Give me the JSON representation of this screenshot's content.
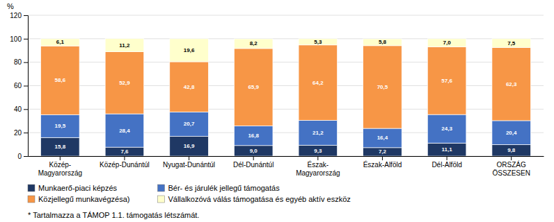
{
  "chart_data": {
    "type": "bar",
    "stacked": true,
    "data_labels": true,
    "grid": true,
    "y_label": "%",
    "categories": [
      "Közép-\nMagyarország",
      "Közép-Dunántúl",
      "Nyugat-Dunántúl",
      "Dél-Dunántúl",
      "Észak-\nMagyarország",
      "Észak-Alföld",
      "Dél-Alföld",
      "ORSZÁG\nÖSSZESEN"
    ],
    "series": [
      {
        "name": "Munkaerő-piaci képzés",
        "color": "#1F3864",
        "values": [
          15.8,
          7.6,
          16.9,
          9.0,
          9.3,
          7.2,
          11.1,
          9.8
        ],
        "value_labels": [
          "15,8",
          "7,6",
          "16,9",
          "9,0",
          "9,3",
          "7,2",
          "11,1",
          "9,8"
        ]
      },
      {
        "name": "Bér- és járulék jellegű támogatás",
        "color": "#4472C4",
        "values": [
          19.5,
          28.4,
          20.7,
          16.8,
          21.2,
          16.4,
          24.3,
          20.4
        ],
        "value_labels": [
          "19,5",
          "28,4",
          "20,7",
          "16,8",
          "21,2",
          "16,4",
          "24,3",
          "20,4"
        ]
      },
      {
        "name": "Közjellegű munkavégzésa)",
        "color": "#F79646",
        "values": [
          58.6,
          52.9,
          42.8,
          65.9,
          64.2,
          70.5,
          57.6,
          62.3
        ],
        "value_labels": [
          "58,6",
          "52,9",
          "42,8",
          "65,9",
          "64,2",
          "70,5",
          "57,6",
          "62,3"
        ]
      },
      {
        "name": "Vállalkozóvá válás támogatása és egyéb aktív eszköz",
        "color": "#FFFFCC",
        "values": [
          6.1,
          11.2,
          19.6,
          8.2,
          5.3,
          5.8,
          7.0,
          7.5
        ],
        "value_labels": [
          "6,1",
          "11,2",
          "19,6",
          "8,2",
          "5,3",
          "5,8",
          "7,0",
          "7,5"
        ]
      }
    ],
    "ylim": [
      0,
      120
    ],
    "yticks": [
      0,
      20,
      40,
      60,
      80,
      100,
      120
    ],
    "annotations": [
      "* Tartalmazza a TÁMOP 1.1. támogatás létszámát."
    ]
  }
}
